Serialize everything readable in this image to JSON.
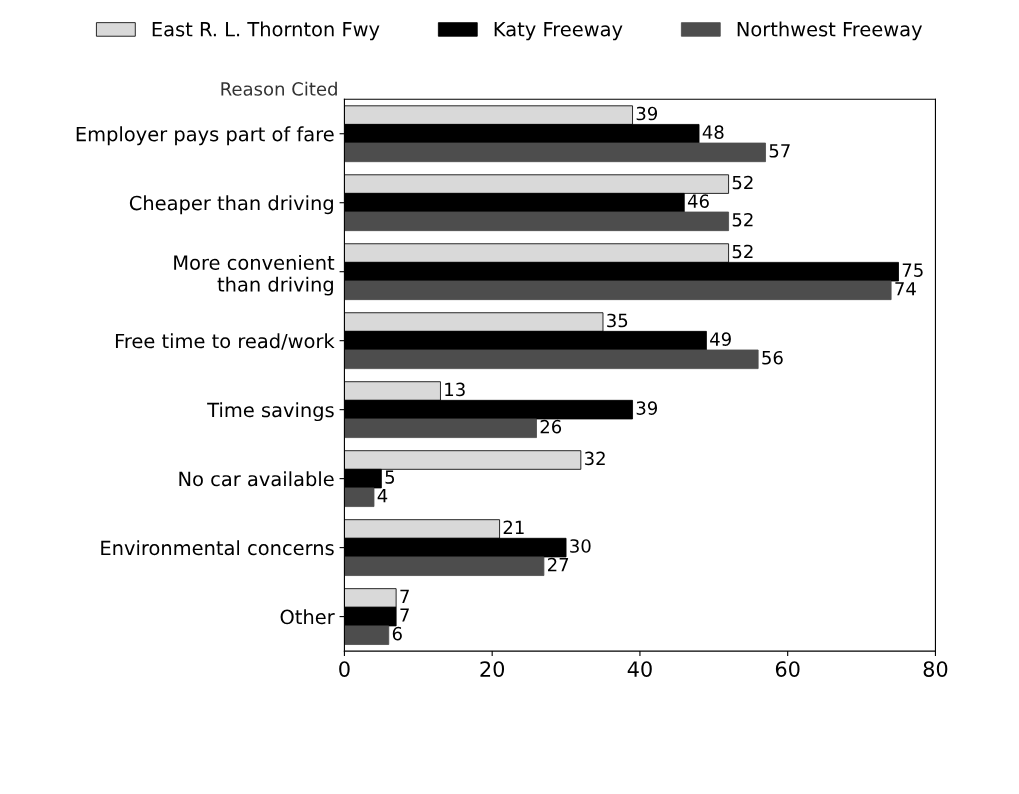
{
  "chart_data": {
    "type": "bar",
    "orientation": "horizontal",
    "ylabel": "Reason Cited",
    "categories": [
      "Employer pays part of fare",
      "Cheaper than driving",
      "More convenient\nthan driving",
      "Free time to read/work",
      "Time savings",
      "No car available",
      "Environmental concerns",
      "Other"
    ],
    "series": [
      {
        "name": "East R. L. Thornton Fwy",
        "color": "#d9d9d9",
        "values": [
          39,
          52,
          52,
          35,
          13,
          32,
          21,
          7
        ]
      },
      {
        "name": "Katy Freeway",
        "color": "#000000",
        "values": [
          48,
          46,
          75,
          49,
          39,
          5,
          30,
          7
        ]
      },
      {
        "name": "Northwest Freeway",
        "color": "#4d4d4d",
        "values": [
          57,
          52,
          74,
          56,
          26,
          4,
          27,
          6
        ]
      }
    ],
    "xlim": [
      0,
      80
    ],
    "xticks": [
      0,
      20,
      40,
      60,
      80
    ],
    "data_labels": true,
    "grid": false,
    "legend": "top"
  }
}
